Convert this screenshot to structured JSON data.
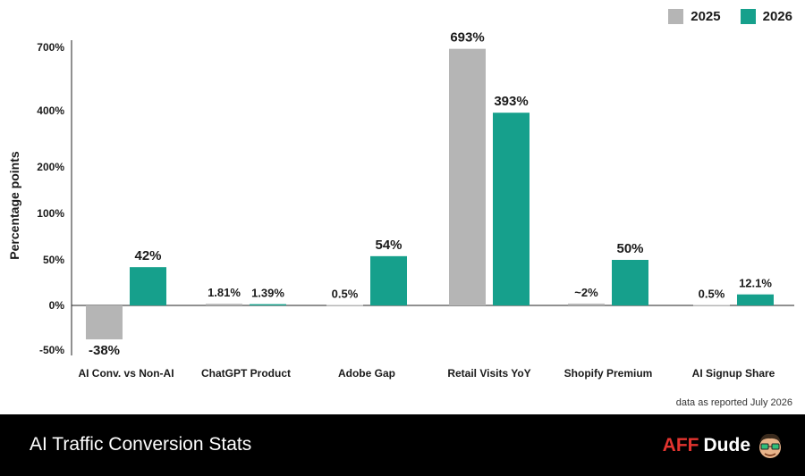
{
  "chart_data": {
    "type": "bar",
    "title": "AI Traffic Conversion Stats",
    "ylabel": "Percentage points",
    "xlabel": "",
    "y_ticks": [
      "700%",
      "400%",
      "200%",
      "100%",
      "50%",
      "0%",
      "-50%"
    ],
    "y_scale": "non-uniform (tick labels 700%, 400%, 200%, 100%, 50%, 0%, -50%)",
    "grid": false,
    "legend_position": "top-right",
    "categories": [
      "AI Conv. vs Non-AI",
      "ChatGPT Product",
      "Adobe Gap",
      "Retail Visits YoY",
      "Shopify Premium",
      "AI Signup Share"
    ],
    "series": [
      {
        "name": "2025",
        "color": "#b5b5b5",
        "values": [
          -38,
          1.81,
          0.5,
          693,
          2,
          0.5
        ],
        "labels": [
          "-38%",
          "1.81%",
          "0.5%",
          "693%",
          "~2%",
          "0.5%"
        ]
      },
      {
        "name": "2026",
        "color": "#16a08c",
        "values": [
          42,
          1.39,
          54,
          393,
          50,
          12.1
        ],
        "labels": [
          "42%",
          "1.39%",
          "54%",
          "393%",
          "50%",
          "12.1%"
        ]
      }
    ]
  },
  "legend": [
    {
      "label": "2025",
      "color": "#b5b5b5"
    },
    {
      "label": "2026",
      "color": "#16a08c"
    }
  ],
  "note": "data as reported July 2026",
  "footer": {
    "title": "AI Traffic Conversion Stats",
    "brand_aff": "AFF",
    "brand_dude": "Dude",
    "mascot_icon": "dude-mascot-icon"
  }
}
